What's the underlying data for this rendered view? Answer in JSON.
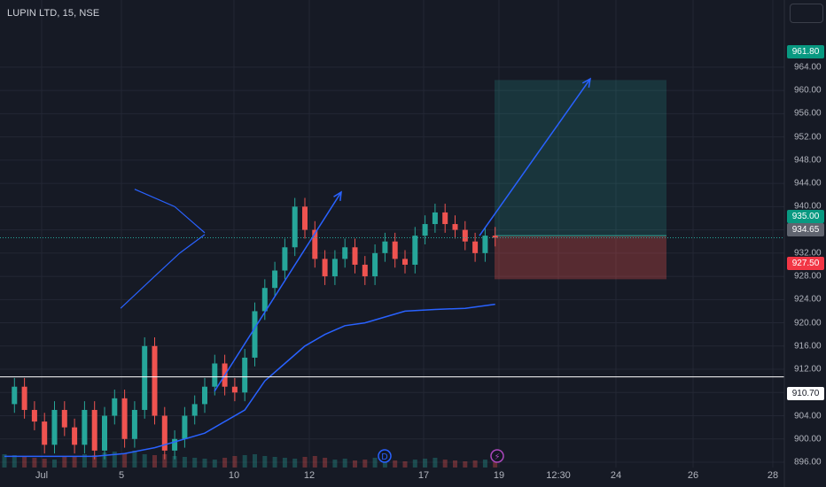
{
  "header": {
    "title": "LUPIN LTD, 15, NSE"
  },
  "price_tags": {
    "target": "961.80",
    "entry": "935.00",
    "last": "934.65",
    "stop": "927.50",
    "support": "910.70"
  },
  "colors": {
    "background": "#161a25",
    "up": "#26a69a",
    "down": "#ef5350",
    "drawing": "#2962ff",
    "profit_zone": "rgba(38,166,154,0.2)",
    "loss_zone": "rgba(239,83,80,0.3)",
    "support_line": "#ffffff"
  },
  "chart_data": {
    "type": "candlestick",
    "title": "LUPIN LTD, 15, NSE",
    "x_tick_labels": [
      "Jul",
      "5",
      "10",
      "12",
      "17",
      "19",
      "12:30",
      "24",
      "26",
      "28"
    ],
    "y_tick_labels": [
      "964.00",
      "960.00",
      "956.00",
      "952.00",
      "948.00",
      "944.00",
      "940.00",
      "936.00",
      "932.00",
      "928.00",
      "924.00",
      "920.00",
      "916.00",
      "912.00",
      "908.00",
      "904.00",
      "900.00",
      "896.00"
    ],
    "ylim": [
      895,
      966
    ],
    "grid": true,
    "markers": [
      "D",
      "⚡"
    ],
    "price_path": [
      [
        0,
        906
      ],
      [
        1,
        909
      ],
      [
        2,
        905
      ],
      [
        3,
        903
      ],
      [
        4,
        899
      ],
      [
        5,
        905
      ],
      [
        6,
        902
      ],
      [
        7,
        899
      ],
      [
        8,
        905
      ],
      [
        9,
        898
      ],
      [
        10,
        904
      ],
      [
        11,
        907
      ],
      [
        12,
        900
      ],
      [
        13,
        905
      ],
      [
        14,
        916
      ],
      [
        15,
        904
      ],
      [
        16,
        898
      ],
      [
        17,
        900
      ],
      [
        18,
        904
      ],
      [
        19,
        906
      ],
      [
        20,
        909
      ],
      [
        21,
        913
      ],
      [
        22,
        909
      ],
      [
        23,
        908
      ],
      [
        24,
        914
      ],
      [
        25,
        922
      ],
      [
        26,
        926
      ],
      [
        27,
        929
      ],
      [
        28,
        933
      ],
      [
        29,
        940
      ],
      [
        30,
        936
      ],
      [
        31,
        931
      ],
      [
        32,
        928
      ],
      [
        33,
        931
      ],
      [
        34,
        933
      ],
      [
        35,
        930
      ],
      [
        36,
        928
      ],
      [
        37,
        932
      ],
      [
        38,
        934
      ],
      [
        39,
        931
      ],
      [
        40,
        930
      ],
      [
        41,
        935
      ],
      [
        42,
        937
      ],
      [
        43,
        939
      ],
      [
        44,
        937
      ],
      [
        45,
        936
      ],
      [
        46,
        934
      ],
      [
        47,
        932
      ],
      [
        48,
        935
      ],
      [
        49,
        934.65
      ]
    ],
    "moving_average": [
      [
        0,
        897
      ],
      [
        9,
        897
      ],
      [
        12,
        897.5
      ],
      [
        15,
        898.5
      ],
      [
        20,
        901
      ],
      [
        24,
        905
      ],
      [
        26,
        910
      ],
      [
        28,
        913
      ],
      [
        30,
        916
      ],
      [
        32,
        918
      ],
      [
        34,
        919.5
      ],
      [
        36,
        920
      ],
      [
        38,
        921
      ],
      [
        40,
        922
      ],
      [
        43,
        922.3
      ],
      [
        46,
        922.5
      ],
      [
        49,
        923.2
      ]
    ],
    "volume": [
      30,
      28,
      26,
      22,
      20,
      18,
      24,
      26,
      30,
      28,
      34,
      36,
      32,
      38,
      30,
      28,
      30,
      26,
      24,
      22,
      20,
      18,
      22,
      26,
      28,
      30,
      26,
      24,
      22,
      20,
      24,
      26,
      22,
      18,
      20,
      16,
      18,
      22,
      20,
      16,
      14,
      18,
      20,
      22,
      18,
      16,
      14,
      16,
      18,
      12
    ],
    "levels": {
      "target": 961.8,
      "entry": 935.0,
      "last": 934.65,
      "stop": 927.5,
      "support": 910.7
    },
    "triangle": {
      "upper": [
        [
          13,
          943
        ],
        [
          17,
          940
        ],
        [
          19,
          937
        ],
        [
          20,
          935.5
        ]
      ],
      "lower": [
        [
          11.6,
          922.5
        ],
        [
          15,
          928
        ],
        [
          17.5,
          932
        ],
        [
          20,
          935.2
        ]
      ]
    },
    "impulse_arrow": {
      "from": [
        "10",
        908.2
      ],
      "to": [
        "12",
        942.5
      ]
    },
    "projection_arrow": {
      "from": [
        "19",
        935
      ],
      "to": [
        "12:30",
        962
      ]
    }
  }
}
